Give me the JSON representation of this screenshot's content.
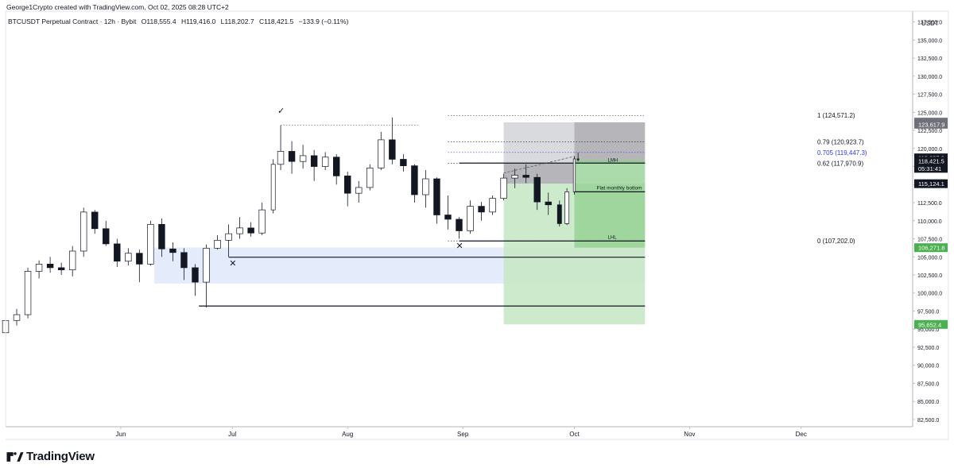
{
  "header": {
    "credit": "George1Crypto created with TradingView.com, Oct 02, 2025 08:28 UTC+2",
    "symbol": "BTCUSDT Perpetual Contract · 12h · Bybit",
    "ohlc": {
      "open": "O118,555.4",
      "high": "H119,416.0",
      "low": "L118,202.7",
      "close": "C118,421.5",
      "change": "−133.9 (−0.11%)"
    }
  },
  "footer": {
    "brand": "TradingView"
  },
  "colors": {
    "up": "#131722",
    "down": "#131722",
    "blue_zone": "#dbe5fb",
    "gray_zone": "#c9cacf",
    "dark_gray_zone": "#9d9ea3",
    "green_light": "#c9e8c6",
    "green_dark": "#8fcf8d",
    "fib_blue": "#2b3af7",
    "badge_green": "#4caf50",
    "badge_dark": "#131722",
    "badge_gray": "#6f7178"
  },
  "chart_data": {
    "type": "candlestick",
    "title": "BTCUSDT Perpetual Contract · 12h · Bybit",
    "currency": "USDT",
    "ylim": [
      81500,
      139000
    ],
    "y_ticks": [
      "82,500.0",
      "85,000.0",
      "87,500.0",
      "90,000.0",
      "92,500.0",
      "95,000.0",
      "97,500.0",
      "100,000.0",
      "102,500.0",
      "105,000.0",
      "107,500.0",
      "110,000.0",
      "112,500.0",
      "115,000.0",
      "117,500.0",
      "120,000.0",
      "122,500.0",
      "125,000.0",
      "127,500.0",
      "130,000.0",
      "132,500.0",
      "135,000.0",
      "137,500.0"
    ],
    "x_labels": [
      "Jun",
      "Jul",
      "Aug",
      "Sep",
      "Oct",
      "Nov",
      "Dec"
    ],
    "x_range": [
      "2025-05-01",
      "2025-12-31"
    ],
    "last_close": 118421.5,
    "price_badges": [
      {
        "label": "123,643.4",
        "value": 123643.4,
        "style": "gray"
      },
      {
        "label": "123,617.9",
        "value": 123350,
        "style": "gray"
      },
      {
        "label": "118,697.3",
        "value": 118697.3,
        "style": "dark"
      },
      {
        "label": "118,421.5",
        "value": 118250,
        "style": "dark"
      },
      {
        "label": "05:31:41",
        "value": 117250,
        "style": "dark"
      },
      {
        "label": "115,124.1",
        "value": 115124.1,
        "style": "dark"
      },
      {
        "label": "106,271.8",
        "value": 106271.8,
        "style": "green"
      },
      {
        "label": "95,652.4",
        "value": 95652.4,
        "style": "green"
      }
    ],
    "fib_levels": [
      {
        "label": "1 (124,571.2)",
        "value": 124571.2,
        "color": "#131722"
      },
      {
        "label": "0.79 (120,923.7)",
        "value": 120923.7,
        "color": "#131722"
      },
      {
        "label": "0.705 (119,447.3)",
        "value": 119447.3,
        "color": "#2b3af7"
      },
      {
        "label": "0.62 (117,970.9)",
        "value": 117970.9,
        "color": "#131722"
      },
      {
        "label": "0 (107,202.0)",
        "value": 107202.0,
        "color": "#131722"
      }
    ],
    "annotations": [
      {
        "text": "LMH",
        "date": "2025-10-10",
        "value": 118150
      },
      {
        "text": "Flat monthly bottom",
        "date": "2025-10-07",
        "value": 114300
      },
      {
        "text": "LHL",
        "date": "2025-10-10",
        "value": 107500
      }
    ],
    "horizontal_lines": [
      {
        "value": 117970,
        "from": "2025-08-31",
        "to": "2025-10-20"
      },
      {
        "value": 114000,
        "from": "2025-10-01",
        "to": "2025-10-20"
      },
      {
        "value": 107202,
        "from": "2025-08-31",
        "to": "2025-10-20"
      },
      {
        "value": 104950,
        "from": "2025-06-30",
        "to": "2025-10-20"
      },
      {
        "value": 98200,
        "from": "2025-06-22",
        "to": "2025-10-20"
      }
    ],
    "zones": [
      {
        "name": "demand",
        "from": "2025-06-10",
        "to": "2025-10-20",
        "top": 106300,
        "bottom": 101300,
        "style": "blue"
      },
      {
        "name": "target",
        "from": "2025-09-12",
        "to": "2025-10-01",
        "top": 123617,
        "bottom": 117970,
        "style": "gray"
      },
      {
        "name": "target",
        "from": "2025-10-01",
        "to": "2025-10-20",
        "top": 123617,
        "bottom": 117970,
        "style": "dark_gray"
      },
      {
        "name": "upper",
        "from": "2025-09-12",
        "to": "2025-10-01",
        "top": 117970,
        "bottom": 115124,
        "style": "dark_gray"
      },
      {
        "name": "range",
        "from": "2025-09-12",
        "to": "2025-10-20",
        "top": 115124,
        "bottom": 95652,
        "style": "green_light"
      },
      {
        "name": "range",
        "from": "2025-10-01",
        "to": "2025-10-20",
        "top": 118421,
        "bottom": 106271,
        "style": "green_dark"
      }
    ],
    "markers": [
      {
        "symbol": "✓",
        "date": "2025-07-14",
        "value": 124800
      },
      {
        "symbol": "✕",
        "date": "2025-07-01",
        "value": 103700
      },
      {
        "symbol": "✕",
        "date": "2025-08-31",
        "value": 106100
      }
    ],
    "ohlc_points": [
      [
        "2025-05-01",
        94500,
        96500,
        93000,
        96200
      ],
      [
        "2025-05-04",
        96200,
        97800,
        95500,
        97000
      ],
      [
        "2025-05-07",
        97000,
        103500,
        96500,
        103000
      ],
      [
        "2025-05-10",
        103000,
        104500,
        102000,
        104000
      ],
      [
        "2025-05-13",
        104000,
        105000,
        102800,
        103500
      ],
      [
        "2025-05-16",
        103500,
        104200,
        102500,
        103200
      ],
      [
        "2025-05-19",
        103200,
        106500,
        102300,
        105800
      ],
      [
        "2025-05-22",
        105800,
        111800,
        105000,
        111200
      ],
      [
        "2025-05-25",
        111200,
        111500,
        108200,
        108900
      ],
      [
        "2025-05-28",
        108900,
        110000,
        106500,
        106800
      ],
      [
        "2025-05-31",
        106800,
        107500,
        103600,
        104400
      ],
      [
        "2025-06-03",
        104400,
        106200,
        103800,
        105500
      ],
      [
        "2025-06-06",
        105500,
        106000,
        101500,
        104000
      ],
      [
        "2025-06-09",
        104000,
        110000,
        103800,
        109500
      ],
      [
        "2025-06-12",
        109500,
        110300,
        105000,
        106100
      ],
      [
        "2025-06-15",
        106100,
        107000,
        104400,
        105600
      ],
      [
        "2025-06-18",
        105600,
        106200,
        101800,
        103500
      ],
      [
        "2025-06-21",
        103500,
        104000,
        99600,
        101500
      ],
      [
        "2025-06-24",
        101500,
        106700,
        98000,
        106200
      ],
      [
        "2025-06-27",
        106200,
        108000,
        106000,
        107300
      ],
      [
        "2025-06-30",
        107300,
        109500,
        105000,
        108200
      ],
      [
        "2025-07-03",
        108200,
        110500,
        107500,
        109000
      ],
      [
        "2025-07-06",
        109000,
        109800,
        107800,
        108300
      ],
      [
        "2025-07-09",
        108300,
        112500,
        108000,
        111500
      ],
      [
        "2025-07-12",
        111500,
        118500,
        111000,
        117800
      ],
      [
        "2025-07-14",
        117800,
        123200,
        117000,
        119600
      ],
      [
        "2025-07-17",
        119600,
        121000,
        116500,
        118200
      ],
      [
        "2025-07-20",
        118200,
        120500,
        117200,
        119000
      ],
      [
        "2025-07-23",
        119000,
        119800,
        115500,
        117500
      ],
      [
        "2025-07-26",
        117500,
        119500,
        117000,
        118800
      ],
      [
        "2025-07-29",
        118800,
        119200,
        115000,
        116200
      ],
      [
        "2025-08-01",
        116200,
        116800,
        112000,
        113800
      ],
      [
        "2025-08-04",
        113800,
        115500,
        112500,
        114600
      ],
      [
        "2025-08-07",
        114600,
        117800,
        114200,
        117300
      ],
      [
        "2025-08-10",
        117300,
        122300,
        117000,
        121200
      ],
      [
        "2025-08-13",
        121200,
        124300,
        117800,
        118500
      ],
      [
        "2025-08-16",
        118500,
        119200,
        116800,
        117600
      ],
      [
        "2025-08-19",
        117600,
        117800,
        112500,
        113600
      ],
      [
        "2025-08-22",
        113600,
        117000,
        111800,
        115800
      ],
      [
        "2025-08-25",
        115800,
        116000,
        109600,
        110800
      ],
      [
        "2025-08-28",
        110800,
        113500,
        108800,
        110200
      ],
      [
        "2025-08-31",
        110200,
        110500,
        107500,
        108600
      ],
      [
        "2025-09-03",
        108600,
        112800,
        108200,
        112000
      ],
      [
        "2025-09-06",
        112000,
        112600,
        110000,
        111200
      ],
      [
        "2025-09-09",
        111200,
        113500,
        110800,
        113100
      ],
      [
        "2025-09-12",
        113100,
        116500,
        112800,
        115900
      ],
      [
        "2025-09-15",
        115900,
        117200,
        114500,
        116300
      ],
      [
        "2025-09-18",
        116300,
        117800,
        115200,
        116000
      ],
      [
        "2025-09-21",
        116000,
        116500,
        111500,
        112600
      ],
      [
        "2025-09-24",
        112600,
        113900,
        110800,
        112200
      ],
      [
        "2025-09-27",
        112200,
        112800,
        109200,
        109600
      ],
      [
        "2025-09-29",
        109600,
        114500,
        109400,
        114000
      ],
      [
        "2025-10-01",
        114000,
        118900,
        113600,
        118555
      ],
      [
        "2025-10-02",
        118555,
        119416,
        118202,
        118421
      ]
    ]
  }
}
